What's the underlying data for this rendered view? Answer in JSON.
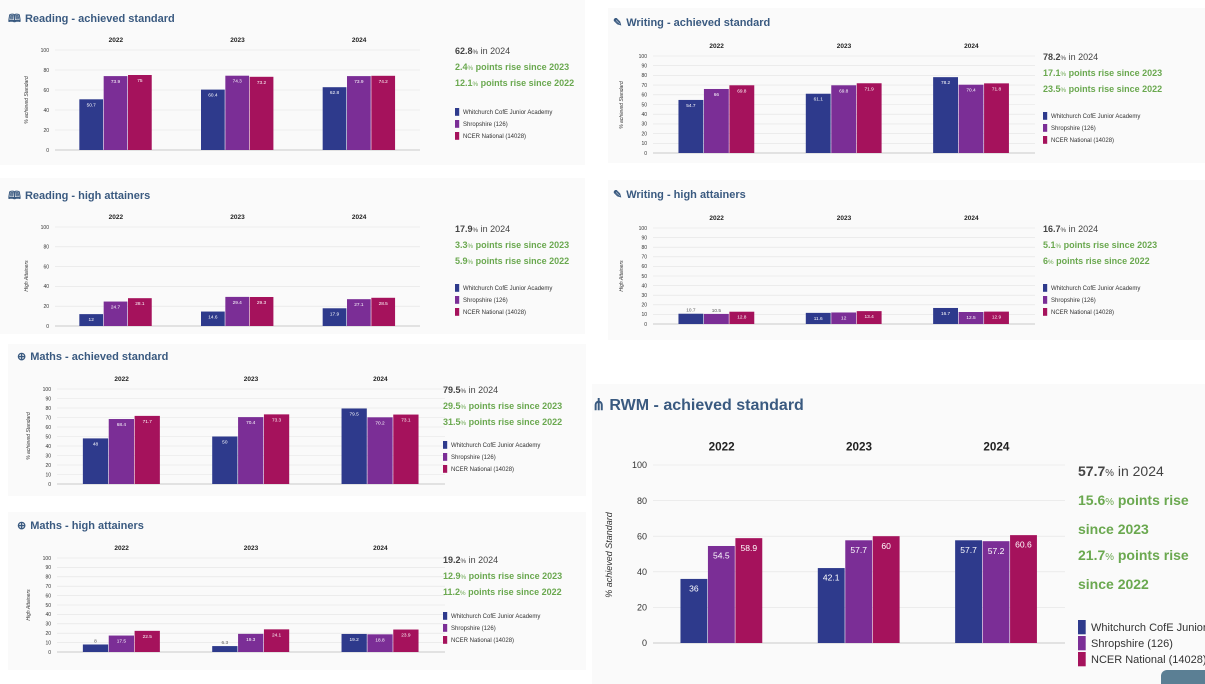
{
  "legend": [
    "Whitchurch CofE Junior Academy",
    "Shropshire (126)",
    "NCER National (14028)"
  ],
  "colors": {
    "school": "#2e3a8c",
    "county": "#7b2e96",
    "national": "#a5125c",
    "title": "#3a5a80",
    "positive": "#6aa84f"
  },
  "panels": [
    {
      "id": "reading-achieved",
      "icon": "book-icon",
      "icon_glyph": "🕮",
      "title": "Reading - achieved standard",
      "stats": {
        "value": "62.8",
        "pct": "%",
        "in_text": " in 2024",
        "rise1_value": "2.4",
        "rise1_text": " points rise since 2023",
        "rise2_value": "12.1",
        "rise2_text": " points rise since 2022"
      }
    },
    {
      "id": "writing-achieved",
      "icon": "pen-icon",
      "icon_glyph": "✎",
      "title": "Writing - achieved standard",
      "stats": {
        "value": "78.2",
        "pct": "%",
        "in_text": " in 2024",
        "rise1_value": "17.1",
        "rise1_text": " points rise since 2023",
        "rise2_value": "23.5",
        "rise2_text": " points rise since 2022"
      }
    },
    {
      "id": "reading-high",
      "icon": "book-icon",
      "icon_glyph": "🕮",
      "title": "Reading - high attainers",
      "stats": {
        "value": "17.9",
        "pct": "%",
        "in_text": " in 2024",
        "rise1_value": "3.3",
        "rise1_text": " points rise since 2023",
        "rise2_value": "5.9",
        "rise2_text": " points rise since 2022"
      }
    },
    {
      "id": "writing-high",
      "icon": "pen-icon",
      "icon_glyph": "✎",
      "title": "Writing - high attainers",
      "stats": {
        "value": "16.7",
        "pct": "%",
        "in_text": " in 2024",
        "rise1_value": "5.1",
        "rise1_text": " points rise since 2023",
        "rise2_value": "6",
        "rise2_text": " points rise since 2022"
      }
    },
    {
      "id": "maths-achieved",
      "icon": "plus-circle-icon",
      "icon_glyph": "⊕",
      "title": "Maths - achieved standard",
      "stats": {
        "value": "79.5",
        "pct": "%",
        "in_text": " in 2024",
        "rise1_value": "29.5",
        "rise1_text": " points rise since 2023",
        "rise2_value": "31.5",
        "rise2_text": " points rise since 2022"
      }
    },
    {
      "id": "maths-high",
      "icon": "plus-circle-icon",
      "icon_glyph": "⊕",
      "title": "Maths - high attainers",
      "stats": {
        "value": "19.2",
        "pct": "%",
        "in_text": " in 2024",
        "rise1_value": "12.9",
        "rise1_text": " points rise since 2023",
        "rise2_value": "11.2",
        "rise2_text": " points rise since 2022"
      }
    },
    {
      "id": "rwm-achieved",
      "icon": "network-icon",
      "icon_glyph": "⋔",
      "title": "RWM - achieved standard",
      "stats": {
        "value": "57.7",
        "pct": "%",
        "in_text": " in 2024",
        "rise1_value": "15.6",
        "rise1_text": " points rise since 2023",
        "rise2_value": "21.7",
        "rise2_text": " points rise since 2022"
      }
    }
  ],
  "chart_data": [
    {
      "type": "bar",
      "title": "Reading - achieved standard",
      "ylabel": "% achieved Standard",
      "ylim": [
        0,
        100
      ],
      "yticks": [
        0,
        20,
        40,
        60,
        80,
        100
      ],
      "categories": [
        "2022",
        "2023",
        "2024"
      ],
      "series": [
        {
          "name": "Whitchurch CofE Junior Academy",
          "values": [
            50.7,
            60.4,
            62.8
          ],
          "labels": [
            "50.7",
            "60.4",
            "62.8"
          ]
        },
        {
          "name": "Shropshire (126)",
          "values": [
            73.9,
            74.3,
            73.9
          ],
          "labels": [
            "73.9",
            "74.3",
            "73.9"
          ]
        },
        {
          "name": "NCER National (14028)",
          "values": [
            75,
            73.2,
            74.2
          ],
          "labels": [
            "75",
            "73.2",
            "74.2"
          ]
        }
      ]
    },
    {
      "type": "bar",
      "title": "Writing - achieved standard",
      "ylabel": "% achieved Standard",
      "ylim": [
        0,
        100
      ],
      "yticks": [
        0,
        10,
        20,
        30,
        40,
        50,
        60,
        70,
        80,
        90,
        100
      ],
      "categories": [
        "2022",
        "2023",
        "2024"
      ],
      "series": [
        {
          "name": "Whitchurch CofE Junior Academy",
          "values": [
            54.7,
            61.1,
            78.2
          ],
          "labels": [
            "54.7",
            "61.1",
            "78.2"
          ]
        },
        {
          "name": "Shropshire (126)",
          "values": [
            66,
            69.8,
            70.4
          ],
          "labels": [
            "66",
            "69.8",
            "70.4"
          ]
        },
        {
          "name": "NCER National (14028)",
          "values": [
            69.8,
            71.9,
            71.8
          ],
          "labels": [
            "69.8",
            "71.9",
            "71.8"
          ]
        }
      ]
    },
    {
      "type": "bar",
      "title": "Reading - high attainers",
      "ylabel": "High Attainers",
      "ylim": [
        0,
        100
      ],
      "yticks": [
        0,
        20,
        40,
        60,
        80,
        100
      ],
      "categories": [
        "2022",
        "2023",
        "2024"
      ],
      "series": [
        {
          "name": "Whitchurch CofE Junior Academy",
          "values": [
            12,
            14.6,
            17.9
          ],
          "labels": [
            "12",
            "14.6",
            "17.9"
          ]
        },
        {
          "name": "Shropshire (126)",
          "values": [
            24.7,
            29.4,
            27.1
          ],
          "labels": [
            "24.7",
            "29.4",
            "27.1"
          ]
        },
        {
          "name": "NCER National (14028)",
          "values": [
            28.1,
            29.3,
            28.5
          ],
          "labels": [
            "28.1",
            "29.3",
            "28.5"
          ]
        }
      ]
    },
    {
      "type": "bar",
      "title": "Writing - high attainers",
      "ylabel": "High Attainers",
      "ylim": [
        0,
        100
      ],
      "yticks": [
        0,
        10,
        20,
        30,
        40,
        50,
        60,
        70,
        80,
        90,
        100
      ],
      "categories": [
        "2022",
        "2023",
        "2024"
      ],
      "series": [
        {
          "name": "Whitchurch CofE Junior Academy",
          "values": [
            10.7,
            11.6,
            16.7
          ],
          "labels": [
            "10.7",
            "11.6",
            "16.7"
          ]
        },
        {
          "name": "Shropshire (126)",
          "values": [
            10.5,
            12,
            12.5
          ],
          "labels": [
            "10.5",
            "12",
            "12.5"
          ]
        },
        {
          "name": "NCER National (14028)",
          "values": [
            12.8,
            13.4,
            12.9
          ],
          "labels": [
            "12.8",
            "13.4",
            "12.9"
          ]
        }
      ]
    },
    {
      "type": "bar",
      "title": "Maths - achieved standard",
      "ylabel": "% achieved Standard",
      "ylim": [
        0,
        100
      ],
      "yticks": [
        0,
        10,
        20,
        30,
        40,
        50,
        60,
        70,
        80,
        90,
        100
      ],
      "categories": [
        "2022",
        "2023",
        "2024"
      ],
      "series": [
        {
          "name": "Whitchurch CofE Junior Academy",
          "values": [
            48,
            50,
            79.5
          ],
          "labels": [
            "48",
            "50",
            "79.5"
          ]
        },
        {
          "name": "Shropshire (126)",
          "values": [
            68.4,
            70.4,
            70.2
          ],
          "labels": [
            "68.4",
            "70.4",
            "70.2"
          ]
        },
        {
          "name": "NCER National (14028)",
          "values": [
            71.7,
            73.3,
            73.1
          ],
          "labels": [
            "71.7",
            "73.3",
            "73.1"
          ]
        }
      ]
    },
    {
      "type": "bar",
      "title": "Maths - high attainers",
      "ylabel": "High Attainers",
      "ylim": [
        0,
        100
      ],
      "yticks": [
        0,
        10,
        20,
        30,
        40,
        50,
        60,
        70,
        80,
        90,
        100
      ],
      "categories": [
        "2022",
        "2023",
        "2024"
      ],
      "series": [
        {
          "name": "Whitchurch CofE Junior Academy",
          "values": [
            8,
            6.3,
            19.2
          ],
          "labels": [
            "8",
            "6.3",
            "19.2"
          ]
        },
        {
          "name": "Shropshire (126)",
          "values": [
            17.5,
            19.3,
            18.8
          ],
          "labels": [
            "17.5",
            "19.3",
            "18.8"
          ]
        },
        {
          "name": "NCER National (14028)",
          "values": [
            22.5,
            24.1,
            23.9
          ],
          "labels": [
            "22.5",
            "24.1",
            "23.9"
          ]
        }
      ]
    },
    {
      "type": "bar",
      "title": "RWM - achieved standard",
      "ylabel": "% achieved Standard",
      "ylim": [
        0,
        100
      ],
      "yticks": [
        0,
        20,
        40,
        60,
        80,
        100
      ],
      "categories": [
        "2022",
        "2023",
        "2024"
      ],
      "series": [
        {
          "name": "Whitchurch CofE Junior Academy",
          "values": [
            36,
            42.1,
            57.7
          ],
          "labels": [
            "36",
            "42.1",
            "57.7"
          ]
        },
        {
          "name": "Shropshire (126)",
          "values": [
            54.5,
            57.7,
            57.2
          ],
          "labels": [
            "54.5",
            "57.7",
            "57.2"
          ]
        },
        {
          "name": "NCER National (14028)",
          "values": [
            58.9,
            60,
            60.6
          ],
          "labels": [
            "58.9",
            "60",
            "60.6"
          ]
        }
      ]
    }
  ]
}
